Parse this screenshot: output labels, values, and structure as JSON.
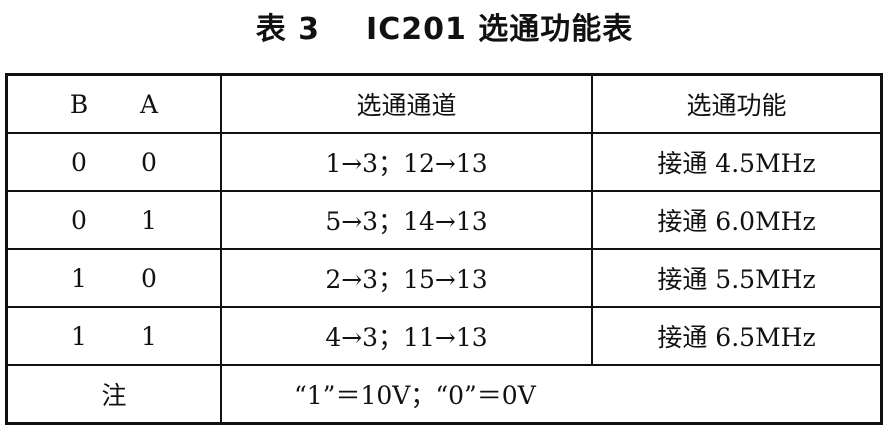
{
  "title": {
    "number": "表 3",
    "text": "IC201 选通功能表"
  },
  "table": {
    "headers": {
      "b": "B",
      "a": "A",
      "channel": "选通通道",
      "function": "选通功能"
    },
    "rows": [
      {
        "b": "0",
        "a": "0",
        "channel": "1→3；12→13",
        "function": "接通 4.5MHz"
      },
      {
        "b": "0",
        "a": "1",
        "channel": "5→3；14→13",
        "function": "接通 6.0MHz"
      },
      {
        "b": "1",
        "a": "0",
        "channel": "2→3；15→13",
        "function": "接通 5.5MHz"
      },
      {
        "b": "1",
        "a": "1",
        "channel": "4→3；11→13",
        "function": "接通 6.5MHz"
      }
    ],
    "note": {
      "label": "注",
      "value": "“1”＝10V；“0”＝0V"
    }
  }
}
